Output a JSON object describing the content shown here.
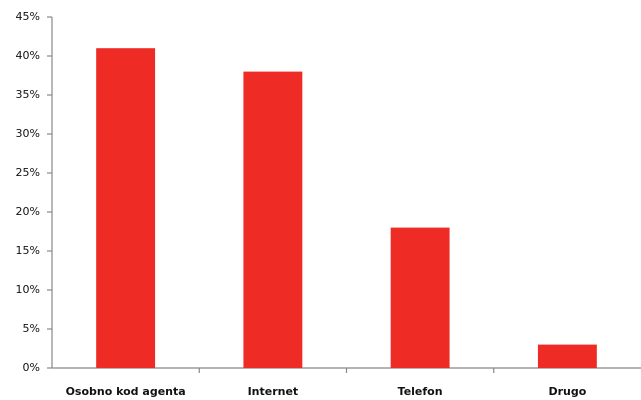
{
  "chart_data": {
    "type": "bar",
    "categories": [
      "Osobno kod agenta",
      "Internet",
      "Telefon",
      "Drugo"
    ],
    "values": [
      41,
      38,
      18,
      3
    ],
    "color": "#ee2b24",
    "ylim": [
      0,
      45
    ],
    "yticks": [
      {
        "value": 0,
        "label": "0%"
      },
      {
        "value": 5,
        "label": "5%"
      },
      {
        "value": 10,
        "label": "10%"
      },
      {
        "value": 15,
        "label": "15%"
      },
      {
        "value": 20,
        "label": "20%"
      },
      {
        "value": 25,
        "label": "25%"
      },
      {
        "value": 30,
        "label": "30%"
      },
      {
        "value": 35,
        "label": "35%"
      },
      {
        "value": 40,
        "label": "40%"
      },
      {
        "value": 45,
        "label": "45%"
      }
    ],
    "grid": false
  }
}
